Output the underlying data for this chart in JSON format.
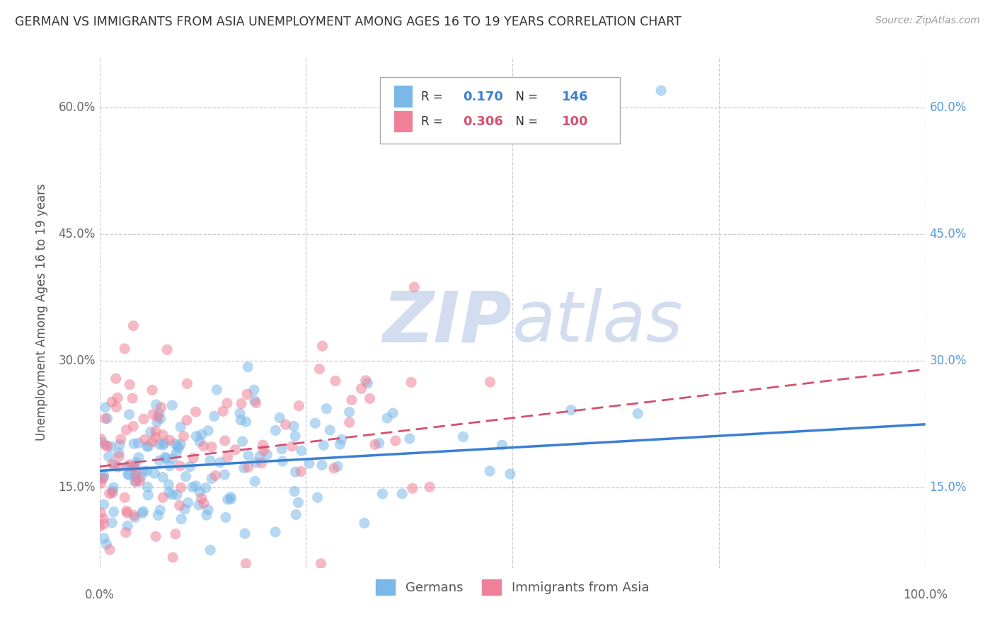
{
  "title": "GERMAN VS IMMIGRANTS FROM ASIA UNEMPLOYMENT AMONG AGES 16 TO 19 YEARS CORRELATION CHART",
  "source": "Source: ZipAtlas.com",
  "ylabel": "Unemployment Among Ages 16 to 19 years",
  "y_ticks": [
    0.15,
    0.3,
    0.45,
    0.6
  ],
  "y_tick_labels_left": [
    "15.0%",
    "30.0%",
    "45.0%",
    "60.0%"
  ],
  "y_tick_labels_right": [
    "15.0%",
    "30.0%",
    "45.0%",
    "60.0%"
  ],
  "legend_labels_bottom": [
    "Germans",
    "Immigrants from Asia"
  ],
  "blue_color": "#7ab8e8",
  "pink_color": "#f08098",
  "blue_line_color": "#3a7fd4",
  "pink_line_color": "#d45070",
  "right_label_color": "#5599dd",
  "watermark_color": "#ccd8ee",
  "R_blue": 0.17,
  "N_blue": 146,
  "R_pink": 0.306,
  "N_pink": 100,
  "xmin": 0.0,
  "xmax": 1.0,
  "ymin": 0.055,
  "ymax": 0.66,
  "blue_intercept": 0.17,
  "blue_slope": 0.055,
  "pink_intercept": 0.175,
  "pink_slope": 0.115
}
